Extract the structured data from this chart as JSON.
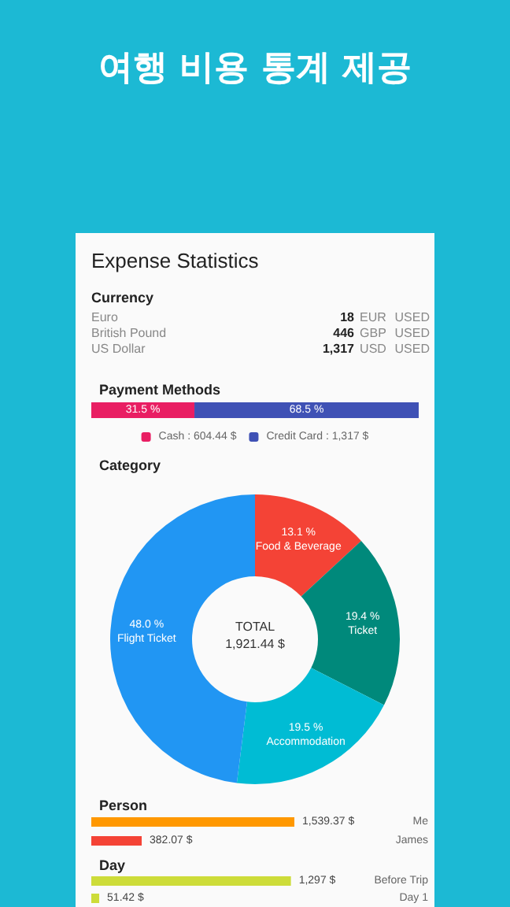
{
  "chart_data": [
    {
      "type": "other",
      "title": "여행 비용 통계 제공",
      "subtitle": "Expense Statistics"
    },
    {
      "type": "other",
      "title": "Currency",
      "annotations": [
        "Euro",
        "18",
        "EUR",
        "USED",
        "British Pound",
        "446",
        "GBP",
        "USED",
        "US Dollar",
        "1,317",
        "USD",
        "USED"
      ]
    },
    {
      "type": "bar",
      "title": "Payment Methods",
      "categories": [
        null
      ],
      "orientation": "horizontal",
      "stacked": true,
      "xlim": [
        0,
        100
      ],
      "tick_labels": false,
      "legend": "bottom",
      "grid": false,
      "series": [
        {
          "name": "Cash : 604.44 $",
          "color": "#e91e63",
          "values": [
            31.5
          ],
          "value_labels": [
            "31.5 %"
          ]
        },
        {
          "name": "Credit Card : 1,317 $",
          "color": "#3f51b5",
          "values": [
            68.5
          ],
          "value_labels": [
            "68.5 %"
          ]
        }
      ]
    },
    {
      "type": "donut",
      "title": "Category",
      "categories": [
        "Food & Beverage",
        "Ticket",
        "Accommodation",
        "Flight Ticket"
      ],
      "values": [
        13.1,
        19.4,
        19.5,
        48.0
      ],
      "value_labels": [
        "13.1 %",
        "19.4 %",
        "19.5 %",
        "48.0 %"
      ],
      "colors": [
        "#f44336",
        "#00897b",
        "#00bcd4",
        "#2196f3"
      ],
      "annotations": [
        "TOTAL",
        "1,921.44 $"
      ]
    },
    {
      "type": "bar",
      "title": "Person",
      "categories": [
        "Me",
        "James"
      ],
      "orientation": "horizontal",
      "tick_labels": "y",
      "grid": false,
      "values": [
        1539.37,
        382.07
      ],
      "value_labels": [
        "1,539.37 $",
        "382.07 $"
      ],
      "colors": [
        "#ff9800",
        "#f44336"
      ]
    },
    {
      "type": "bar",
      "title": "Day",
      "categories": [
        "Before Trip",
        "Day 1"
      ],
      "orientation": "horizontal",
      "tick_labels": "y",
      "grid": false,
      "values": [
        1297,
        51.42
      ],
      "value_labels": [
        "1,297 $",
        "51.42 $"
      ],
      "colors": [
        "#cddc39",
        "#cddc39"
      ]
    }
  ]
}
